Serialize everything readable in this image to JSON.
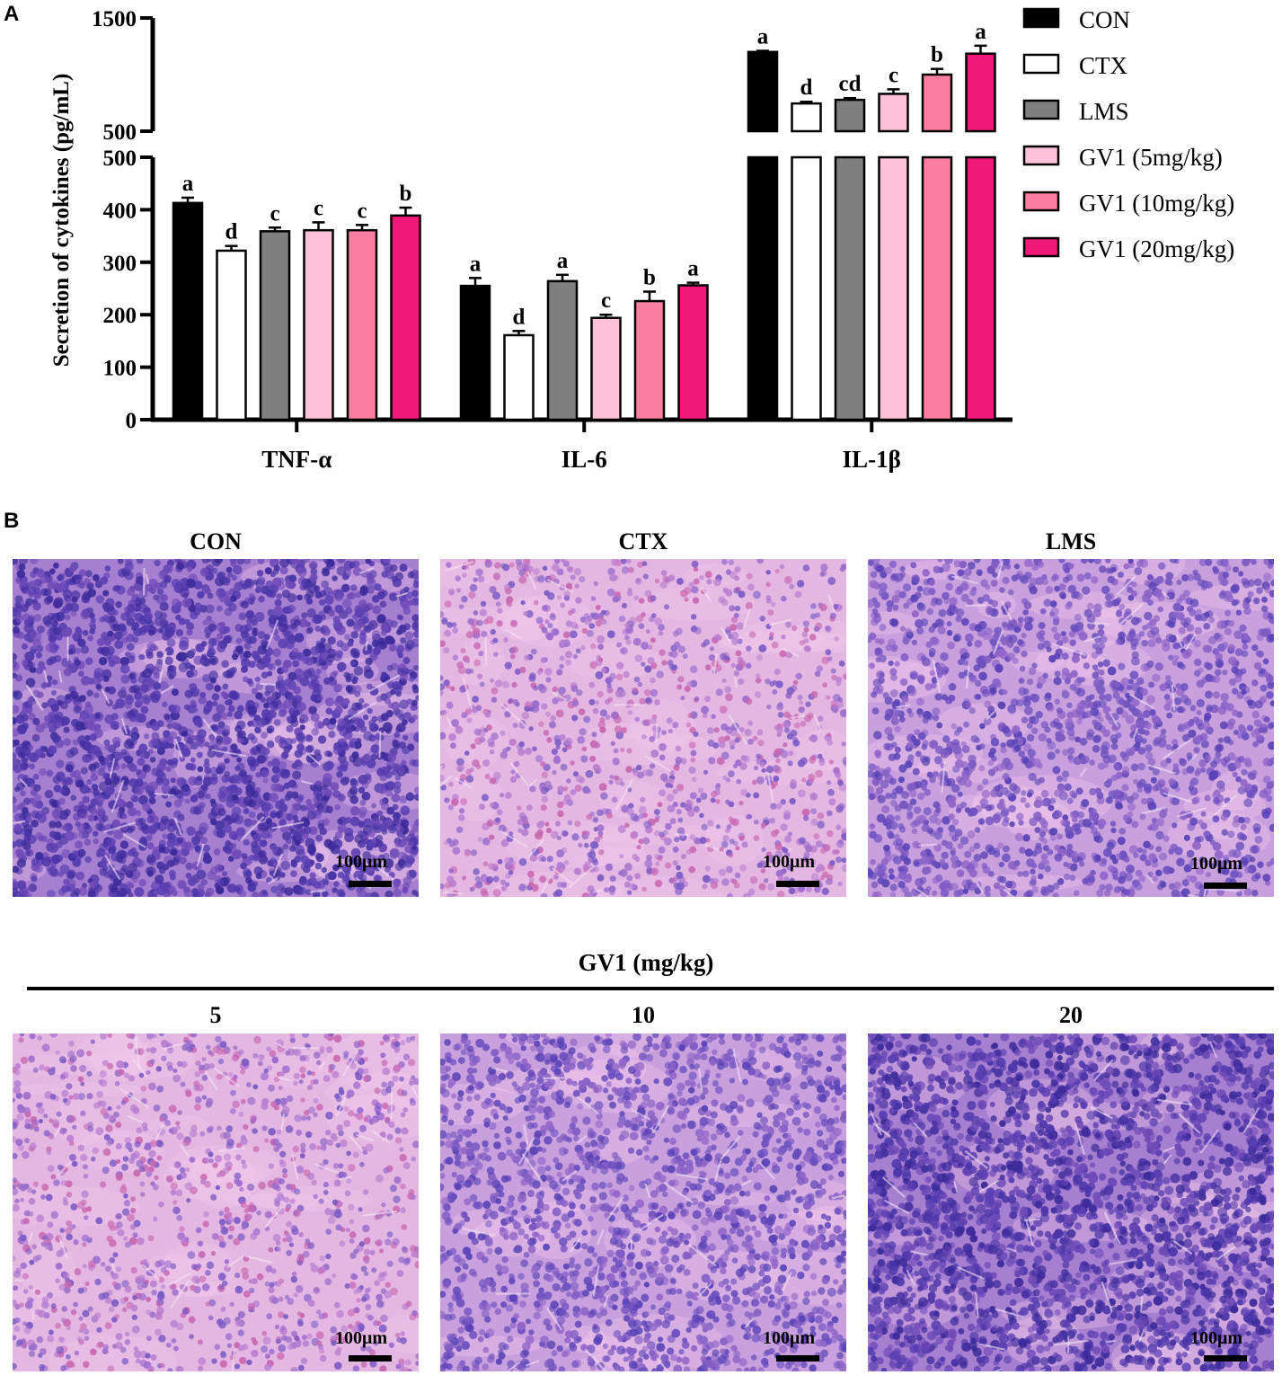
{
  "panels": {
    "a": "A",
    "b": "B"
  },
  "chart_data": {
    "type": "bar",
    "ylabel": "Secretion of cytokines (pg/mL)",
    "categories": [
      "TNF-α",
      "IL-6",
      "IL-1β"
    ],
    "yaxis_break": {
      "lower_ticks": [
        0,
        100,
        200,
        300,
        400,
        500
      ],
      "upper_ticks": [
        500,
        1500
      ]
    },
    "ylim_lower": [
      0,
      500
    ],
    "ylim_upper": [
      500,
      1500
    ],
    "series": [
      {
        "name": "CON",
        "color": "#000000",
        "values": [
          413,
          255,
          1200
        ],
        "errors": [
          10,
          15,
          10
        ],
        "letters": [
          "a",
          "a",
          "a"
        ]
      },
      {
        "name": "CTX",
        "color": "#ffffff",
        "values": [
          322,
          161,
          745
        ],
        "errors": [
          9,
          8,
          15
        ],
        "letters": [
          "d",
          "d",
          "d"
        ]
      },
      {
        "name": "LMS",
        "color": "#7f7f7f",
        "values": [
          359,
          264,
          777
        ],
        "errors": [
          7,
          12,
          15
        ],
        "letters": [
          "c",
          "a",
          "cd"
        ]
      },
      {
        "name": "GV1 (5mg/kg)",
        "color": "#ffc0d9",
        "values": [
          361,
          194,
          830
        ],
        "errors": [
          15,
          6,
          40
        ],
        "letters": [
          "c",
          "c",
          "c"
        ]
      },
      {
        "name": "GV1 (10mg/kg)",
        "color": "#f97fa1",
        "values": [
          361,
          226,
          1000
        ],
        "errors": [
          10,
          18,
          50
        ],
        "letters": [
          "c",
          "b",
          "b"
        ]
      },
      {
        "name": "GV1 (20mg/kg)",
        "color": "#f0197a",
        "values": [
          389,
          256,
          1185
        ],
        "errors": [
          15,
          5,
          70
        ],
        "letters": [
          "b",
          "a",
          "a"
        ]
      }
    ],
    "legend_position": "right"
  },
  "micrographs": {
    "top": [
      "CON",
      "CTX",
      "LMS"
    ],
    "group_title": "GV1 (mg/kg)",
    "bottom": [
      "5",
      "10",
      "20"
    ],
    "scale_label": "100μm"
  }
}
